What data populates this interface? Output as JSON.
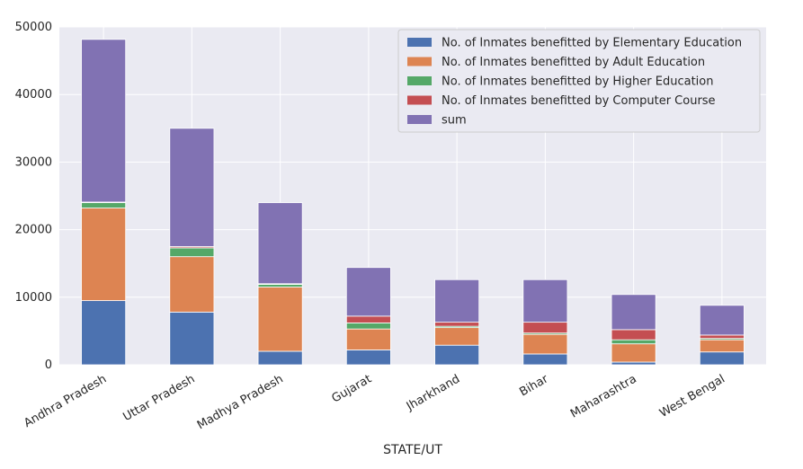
{
  "chart_data": {
    "type": "bar",
    "stacked": true,
    "xlabel": "STATE/UT",
    "ylabel": "",
    "ylim": [
      0,
      50000
    ],
    "yticks": [
      0,
      10000,
      20000,
      30000,
      40000,
      50000
    ],
    "grid": true,
    "legend_position": "top-right",
    "categories": [
      "Andhra Pradesh",
      "Uttar Pradesh",
      "Madhya Pradesh",
      "Gujarat",
      "Jharkhand",
      "Bihar",
      "Maharashtra",
      "West Bengal"
    ],
    "series": [
      {
        "name": "No. of Inmates benefitted by Elementary Education",
        "color": "#4c72b0",
        "values": [
          9500,
          7800,
          2000,
          2200,
          2900,
          1600,
          400,
          1900
        ]
      },
      {
        "name": "No. of Inmates benefitted by Adult Education",
        "color": "#dd8452",
        "values": [
          13700,
          8200,
          9500,
          3100,
          2600,
          2900,
          2700,
          1800
        ]
      },
      {
        "name": "No. of Inmates benefitted by Higher Education",
        "color": "#55a868",
        "values": [
          800,
          1300,
          400,
          900,
          200,
          200,
          600,
          200
        ]
      },
      {
        "name": "No. of Inmates benefitted by Computer Course",
        "color": "#c44e52",
        "values": [
          80,
          200,
          100,
          1000,
          600,
          1600,
          1500,
          500
        ]
      },
      {
        "name": "sum",
        "color": "#8172b3",
        "values": [
          24080,
          17500,
          12000,
          7200,
          6300,
          6300,
          5200,
          4400
        ]
      }
    ]
  }
}
